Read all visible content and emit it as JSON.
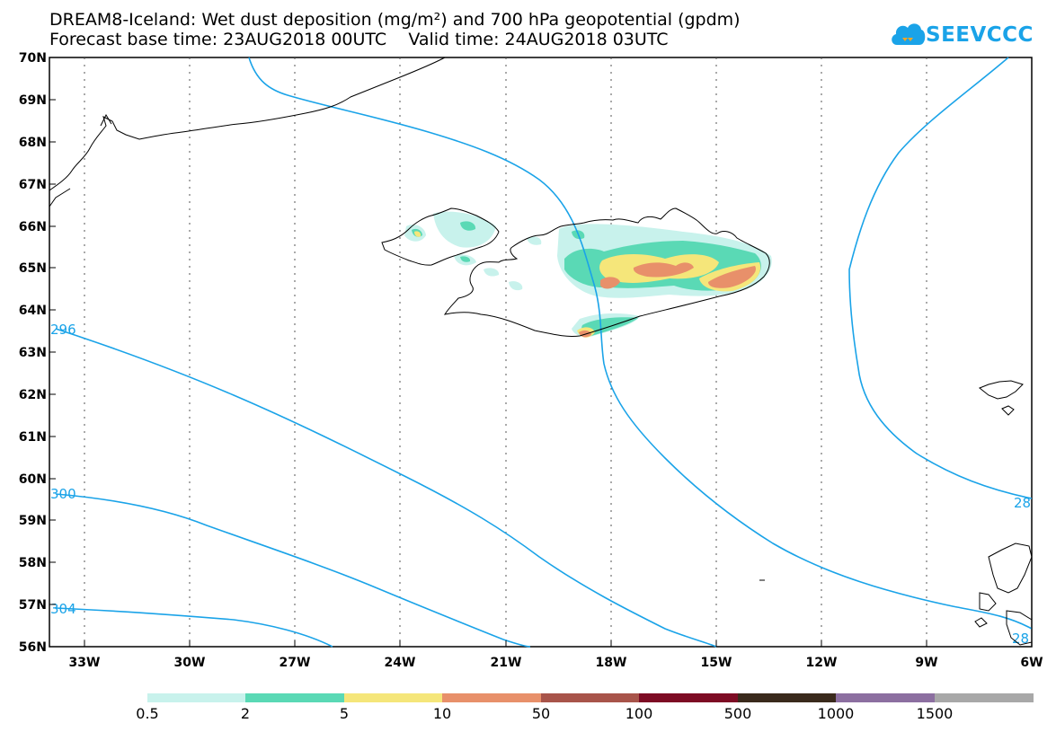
{
  "title": {
    "line1": "DREAM8-Iceland: Wet dust deposition (mg/m²) and 700 hPa geopotential (gpdm)",
    "line2": "Forecast base time: 23AUG2018 00UTC    Valid time: 24AUG2018 03UTC"
  },
  "logo": {
    "text": "SEEVCCC",
    "icon": "cloud-icon"
  },
  "axes": {
    "lat_labels": [
      "70N",
      "69N",
      "68N",
      "67N",
      "66N",
      "65N",
      "64N",
      "63N",
      "62N",
      "61N",
      "60N",
      "59N",
      "58N",
      "57N",
      "56N"
    ],
    "lon_labels": [
      "33W",
      "30W",
      "27W",
      "24W",
      "21W",
      "18W",
      "15W",
      "12W",
      "9W",
      "6W"
    ]
  },
  "contours": {
    "labels": [
      "296",
      "300",
      "304",
      "28",
      "28"
    ]
  },
  "colorbar": {
    "colors": [
      "#c8f2ec",
      "#5ad9b5",
      "#f5e67a",
      "#e8906a",
      "#a8544a",
      "#7d0c24",
      "#3a2a1c",
      "#8c6fa0",
      "#a8a8a8"
    ],
    "labels": [
      "0.5",
      "2",
      "5",
      "10",
      "50",
      "100",
      "500",
      "1000",
      "1500"
    ]
  },
  "colors": {
    "contour": "#1aa3e8",
    "coast": "#000000",
    "grid": "#555555"
  }
}
